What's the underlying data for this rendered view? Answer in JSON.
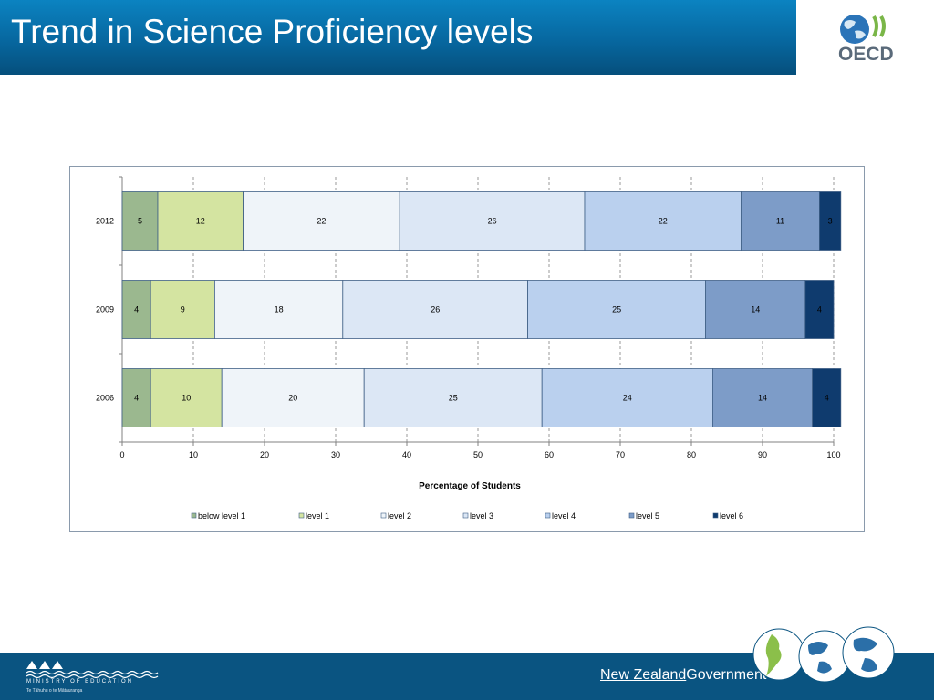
{
  "slide": {
    "title": "Trend in Science Proficiency levels"
  },
  "logos": {
    "oecd": "OECD",
    "ministry": "MINISTRY OF EDUCATION",
    "ministry_sub": "Te Tāhuhu o te Mātauranga",
    "nz_government_nz": "New Zealand",
    "nz_government_gov": "Government"
  },
  "chart_data": {
    "type": "bar",
    "orientation": "horizontal",
    "stacked": true,
    "title": "",
    "xlabel": "Percentage of Students",
    "ylabel": "",
    "xlim": [
      0,
      100
    ],
    "xticks": [
      0,
      10,
      20,
      30,
      40,
      50,
      60,
      70,
      80,
      90,
      100
    ],
    "grid": "vertical dashed",
    "legend": "bottom",
    "categories": [
      "2012",
      "2009",
      "2006"
    ],
    "series": [
      {
        "name": "below level 1",
        "color": "#9bb88f",
        "values": [
          5,
          4,
          4
        ]
      },
      {
        "name": "level 1",
        "color": "#d4e4a1",
        "values": [
          12,
          9,
          10
        ]
      },
      {
        "name": "level 2",
        "color": "#eff4f9",
        "values": [
          22,
          18,
          20
        ]
      },
      {
        "name": "level 3",
        "color": "#dce7f5",
        "values": [
          26,
          26,
          25
        ]
      },
      {
        "name": "level 4",
        "color": "#bad0ee",
        "values": [
          22,
          25,
          24
        ]
      },
      {
        "name": "level 5",
        "color": "#7d9cc8",
        "values": [
          11,
          14,
          14
        ]
      },
      {
        "name": "level 6",
        "color": "#0f3b6e",
        "values": [
          3,
          4,
          4
        ]
      }
    ]
  }
}
